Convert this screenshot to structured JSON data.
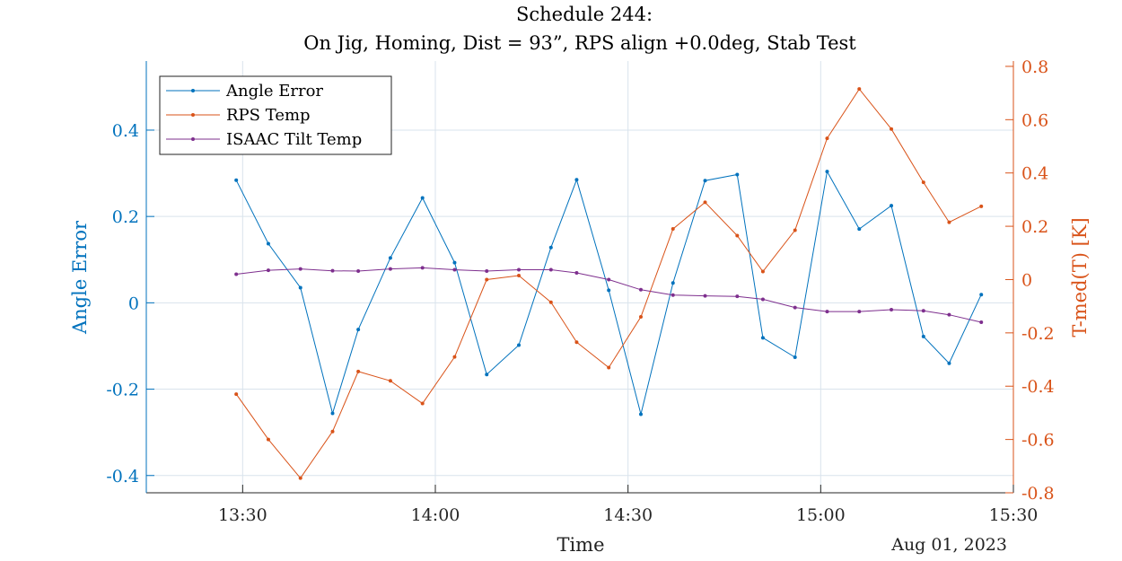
{
  "chart_data": {
    "type": "line",
    "title": [
      "Schedule 244:",
      "On Jig, Homing, Dist = 93”, RPS align +0.0deg, Stab Test"
    ],
    "xlabel": "Time",
    "date_label": "Aug 01, 2023",
    "ylabel_left": "Angle Error",
    "ylabel_right": "T-med(T) [K]",
    "colors": {
      "left_axis": "#0072BD",
      "right_axis": "#D95319",
      "isaac": "#7E2F8E",
      "grid": "#d9e3ec"
    },
    "xlim": [
      "13:15",
      "15:30"
    ],
    "ylim_left": [
      -0.44,
      0.56
    ],
    "ylim_right": [
      -0.8,
      0.82
    ],
    "grid": true,
    "legend_position": "top-left",
    "x_ticks": [
      "13:30",
      "14:00",
      "14:30",
      "15:00",
      "15:30"
    ],
    "y_ticks_left": [
      -0.4,
      -0.2,
      0,
      0.2,
      0.4
    ],
    "y_ticks_right": [
      -0.8,
      -0.6,
      -0.4,
      -0.2,
      0,
      0.2,
      0.4,
      0.6,
      0.8
    ],
    "x": [
      "13:29",
      "13:34",
      "13:39",
      "13:44",
      "13:48",
      "13:53",
      "13:58",
      "14:03",
      "14:08",
      "14:13",
      "14:18",
      "14:22",
      "14:27",
      "14:32",
      "14:37",
      "14:42",
      "14:47",
      "14:51",
      "14:56",
      "15:01",
      "15:06",
      "15:11",
      "15:16",
      "15:20",
      "15:25"
    ],
    "series": [
      {
        "name": "Angle Error",
        "axis": "left",
        "color": "#0072BD",
        "values": [
          0.284,
          0.137,
          0.035,
          -0.256,
          -0.062,
          0.104,
          0.243,
          0.093,
          -0.166,
          -0.098,
          0.128,
          0.285,
          0.029,
          -0.258,
          0.046,
          0.283,
          0.297,
          -0.081,
          -0.126,
          0.304,
          0.171,
          0.225,
          -0.078,
          -0.14,
          0.019
        ]
      },
      {
        "name": "RPS Temp",
        "axis": "right",
        "color": "#D95319",
        "values": [
          -0.43,
          -0.6,
          -0.745,
          -0.57,
          -0.345,
          -0.38,
          -0.465,
          -0.29,
          0.0,
          0.015,
          -0.085,
          -0.235,
          -0.33,
          -0.14,
          0.19,
          0.29,
          0.165,
          0.03,
          0.185,
          0.53,
          0.715,
          0.565,
          0.365,
          0.215,
          0.275
        ]
      },
      {
        "name": "ISAAC Tilt Temp",
        "axis": "right",
        "color": "#7E2F8E",
        "values": [
          0.02,
          0.035,
          0.04,
          0.033,
          0.032,
          0.04,
          0.044,
          0.037,
          0.032,
          0.037,
          0.037,
          0.025,
          0.0,
          -0.038,
          -0.058,
          -0.061,
          -0.063,
          -0.074,
          -0.105,
          -0.12,
          -0.12,
          -0.113,
          -0.117,
          -0.132,
          -0.16
        ]
      }
    ]
  }
}
